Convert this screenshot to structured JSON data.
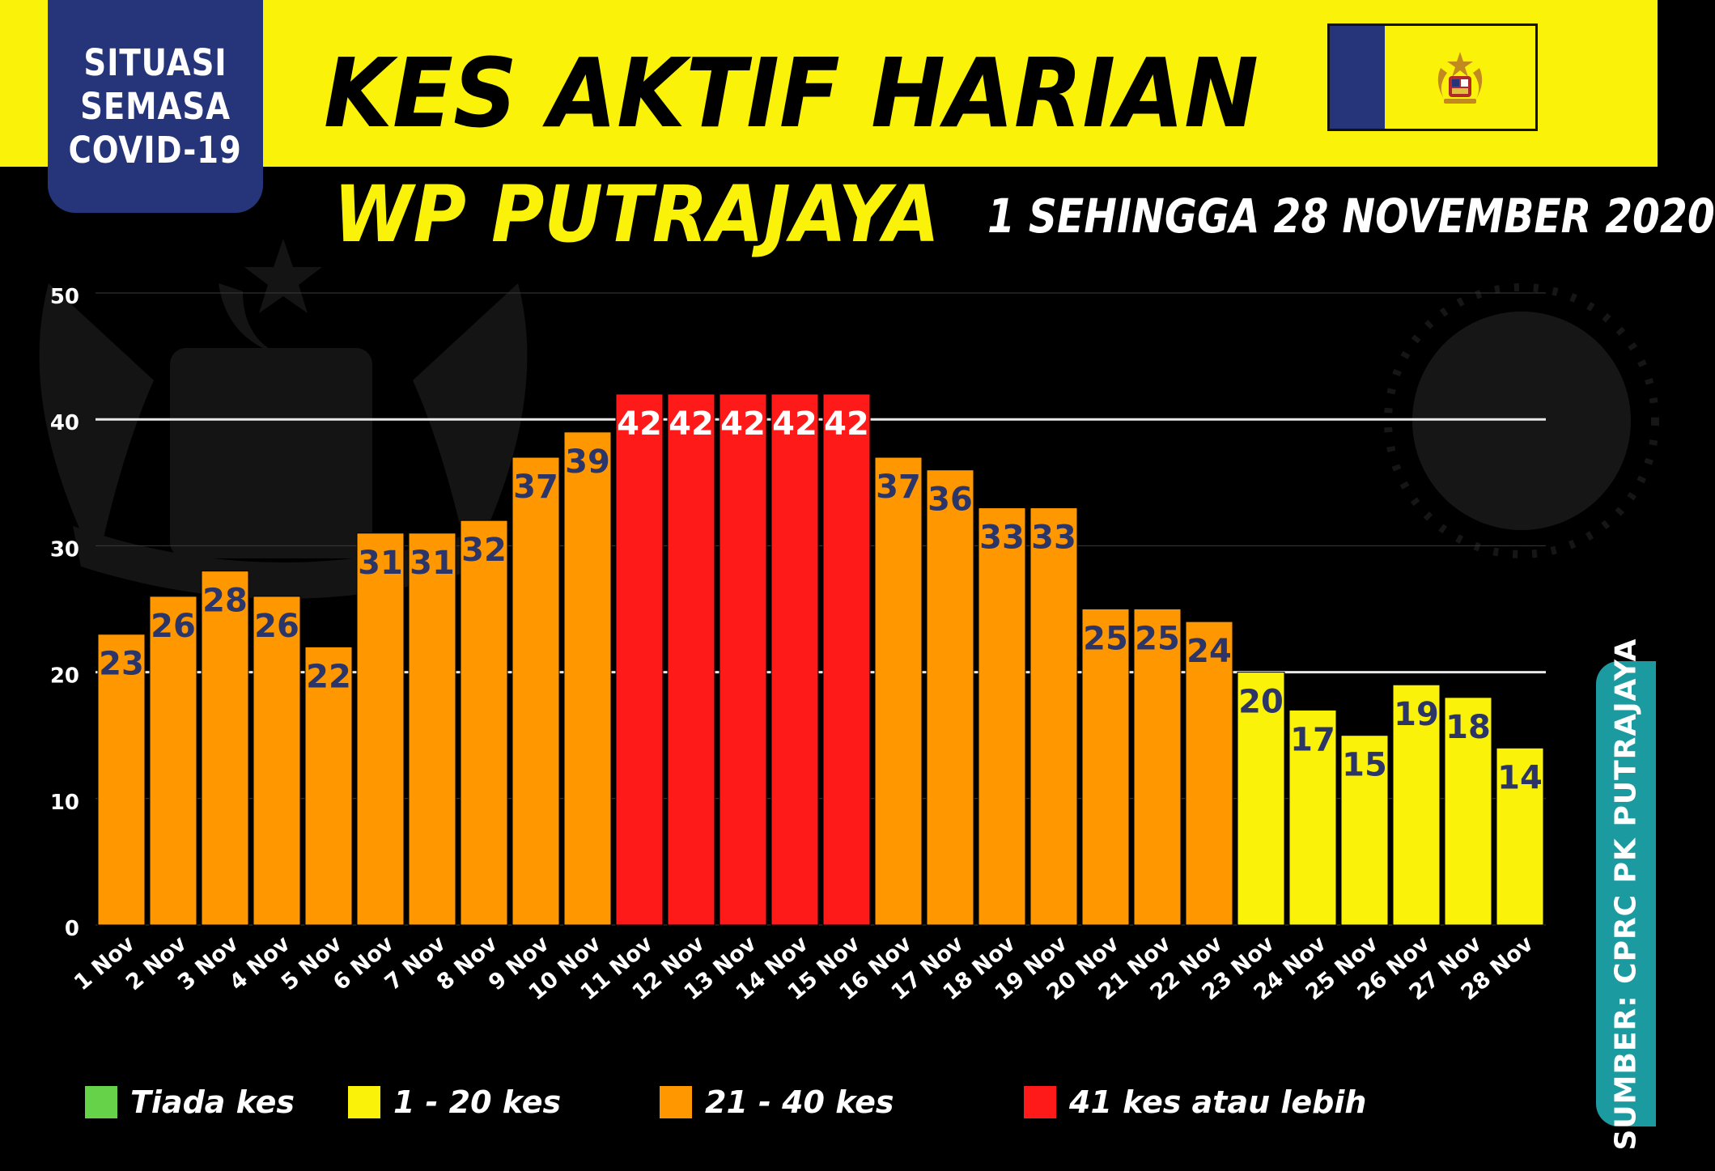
{
  "badge": {
    "line1": "SITUASI",
    "line2": "SEMASA",
    "line3": "COVID-19"
  },
  "header": {
    "title": "KES AKTIF HARIAN",
    "subtitle": "WP PUTRAJAYA",
    "date_range": "1 SEHINGGA 28 NOVEMBER 2020"
  },
  "flag": {
    "colors": {
      "blue": "#26357a",
      "yellow": "#fbf20a"
    }
  },
  "chart_data": {
    "type": "bar",
    "title": "KES AKTIF HARIAN",
    "xlabel": "",
    "ylabel": "",
    "ylim": [
      0,
      50
    ],
    "yticks": [
      0,
      10,
      20,
      30,
      40,
      50
    ],
    "grid": true,
    "legend_position": "bottom",
    "categories": [
      "1 Nov",
      "2 Nov",
      "3 Nov",
      "4 Nov",
      "5 Nov",
      "6 Nov",
      "7 Nov",
      "8 Nov",
      "9 Nov",
      "10 Nov",
      "11 Nov",
      "12 Nov",
      "13 Nov",
      "14 Nov",
      "15 Nov",
      "16 Nov",
      "17 Nov",
      "18 Nov",
      "19 Nov",
      "20 Nov",
      "21 Nov",
      "22 Nov",
      "23 Nov",
      "24 Nov",
      "25 Nov",
      "26 Nov",
      "27 Nov",
      "28 Nov"
    ],
    "values": [
      23,
      26,
      28,
      26,
      22,
      31,
      31,
      32,
      37,
      39,
      42,
      42,
      42,
      42,
      42,
      37,
      36,
      33,
      33,
      25,
      25,
      24,
      20,
      17,
      15,
      19,
      18,
      14
    ],
    "color_bins": [
      {
        "label": "Tiada kes",
        "min": 0,
        "max": 0,
        "color": "#66d24a"
      },
      {
        "label": "1 - 20 kes",
        "min": 1,
        "max": 20,
        "color": "#fbf20a"
      },
      {
        "label": "21 - 40 kes",
        "min": 21,
        "max": 40,
        "color": "#ff9800"
      },
      {
        "label": "41 kes atau lebih",
        "min": 41,
        "max": 1000,
        "color": "#ff1a1a"
      }
    ],
    "data_label_colors": {
      "default": "#2c3568",
      "on_red": "#ffffff"
    }
  },
  "source": {
    "label": "SUMBER: CPRC PK PUTRAJAYA",
    "color": "#1b9ba0"
  }
}
